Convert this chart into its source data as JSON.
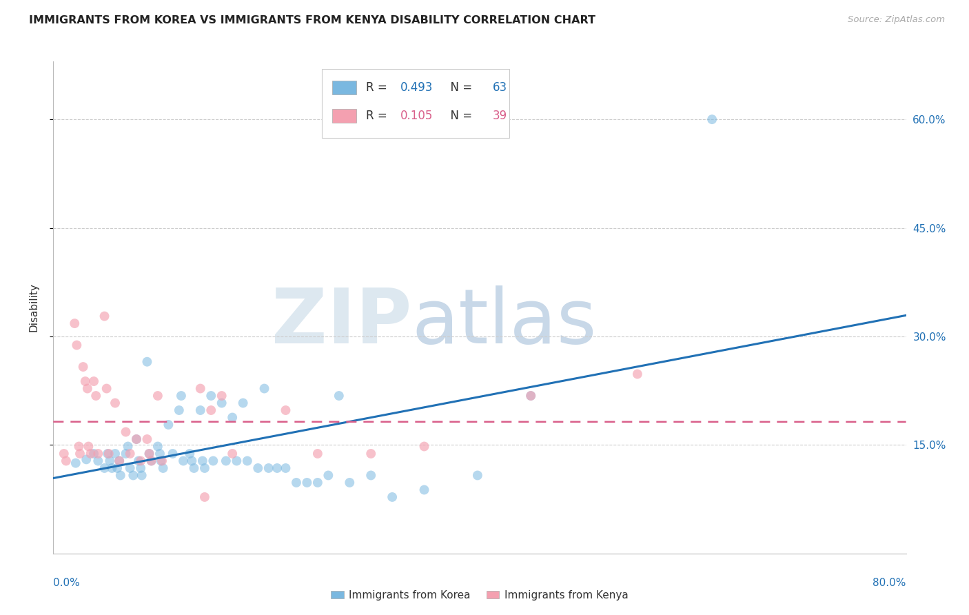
{
  "title": "IMMIGRANTS FROM KOREA VS IMMIGRANTS FROM KENYA DISABILITY CORRELATION CHART",
  "source": "Source: ZipAtlas.com",
  "ylabel": "Disability",
  "xlim": [
    0.0,
    0.8
  ],
  "ylim": [
    0.0,
    0.68
  ],
  "yticks": [
    0.15,
    0.3,
    0.45,
    0.6
  ],
  "ytick_labels": [
    "15.0%",
    "30.0%",
    "45.0%",
    "60.0%"
  ],
  "korea_color": "#7ab8e0",
  "kenya_color": "#f4a0b0",
  "korea_line_color": "#2171b5",
  "kenya_line_color": "#d95f8a",
  "watermark_zip": "ZIP",
  "watermark_atlas": "atlas",
  "legend_korea_R": "0.493",
  "legend_korea_N": "63",
  "legend_kenya_R": "0.105",
  "legend_kenya_N": "39",
  "korea_label": "Immigrants from Korea",
  "kenya_label": "Immigrants from Kenya",
  "korea_x": [
    0.021,
    0.031,
    0.038,
    0.042,
    0.048,
    0.051,
    0.053,
    0.055,
    0.058,
    0.06,
    0.062,
    0.063,
    0.068,
    0.07,
    0.072,
    0.075,
    0.078,
    0.08,
    0.082,
    0.083,
    0.088,
    0.09,
    0.092,
    0.098,
    0.1,
    0.101,
    0.103,
    0.108,
    0.112,
    0.118,
    0.12,
    0.122,
    0.128,
    0.13,
    0.132,
    0.138,
    0.14,
    0.142,
    0.148,
    0.15,
    0.158,
    0.162,
    0.168,
    0.172,
    0.178,
    0.182,
    0.192,
    0.198,
    0.202,
    0.21,
    0.218,
    0.228,
    0.238,
    0.248,
    0.258,
    0.268,
    0.278,
    0.298,
    0.318,
    0.348,
    0.398,
    0.448,
    0.618
  ],
  "korea_y": [
    0.125,
    0.13,
    0.138,
    0.128,
    0.118,
    0.138,
    0.128,
    0.118,
    0.138,
    0.118,
    0.128,
    0.108,
    0.138,
    0.148,
    0.118,
    0.108,
    0.158,
    0.128,
    0.118,
    0.108,
    0.265,
    0.138,
    0.128,
    0.148,
    0.138,
    0.128,
    0.118,
    0.178,
    0.138,
    0.198,
    0.218,
    0.128,
    0.138,
    0.128,
    0.118,
    0.198,
    0.128,
    0.118,
    0.218,
    0.128,
    0.208,
    0.128,
    0.188,
    0.128,
    0.208,
    0.128,
    0.118,
    0.228,
    0.118,
    0.118,
    0.118,
    0.098,
    0.098,
    0.098,
    0.108,
    0.218,
    0.098,
    0.108,
    0.078,
    0.088,
    0.108,
    0.218,
    0.6
  ],
  "kenya_x": [
    0.01,
    0.012,
    0.02,
    0.022,
    0.024,
    0.025,
    0.028,
    0.03,
    0.032,
    0.033,
    0.035,
    0.038,
    0.04,
    0.042,
    0.048,
    0.05,
    0.052,
    0.058,
    0.062,
    0.068,
    0.072,
    0.078,
    0.082,
    0.088,
    0.09,
    0.092,
    0.098,
    0.102,
    0.138,
    0.142,
    0.148,
    0.158,
    0.168,
    0.218,
    0.248,
    0.298,
    0.348,
    0.448,
    0.548
  ],
  "kenya_y": [
    0.138,
    0.128,
    0.318,
    0.288,
    0.148,
    0.138,
    0.258,
    0.238,
    0.228,
    0.148,
    0.138,
    0.238,
    0.218,
    0.138,
    0.328,
    0.228,
    0.138,
    0.208,
    0.128,
    0.168,
    0.138,
    0.158,
    0.128,
    0.158,
    0.138,
    0.128,
    0.218,
    0.128,
    0.228,
    0.078,
    0.198,
    0.218,
    0.138,
    0.198,
    0.138,
    0.138,
    0.148,
    0.218,
    0.248
  ]
}
